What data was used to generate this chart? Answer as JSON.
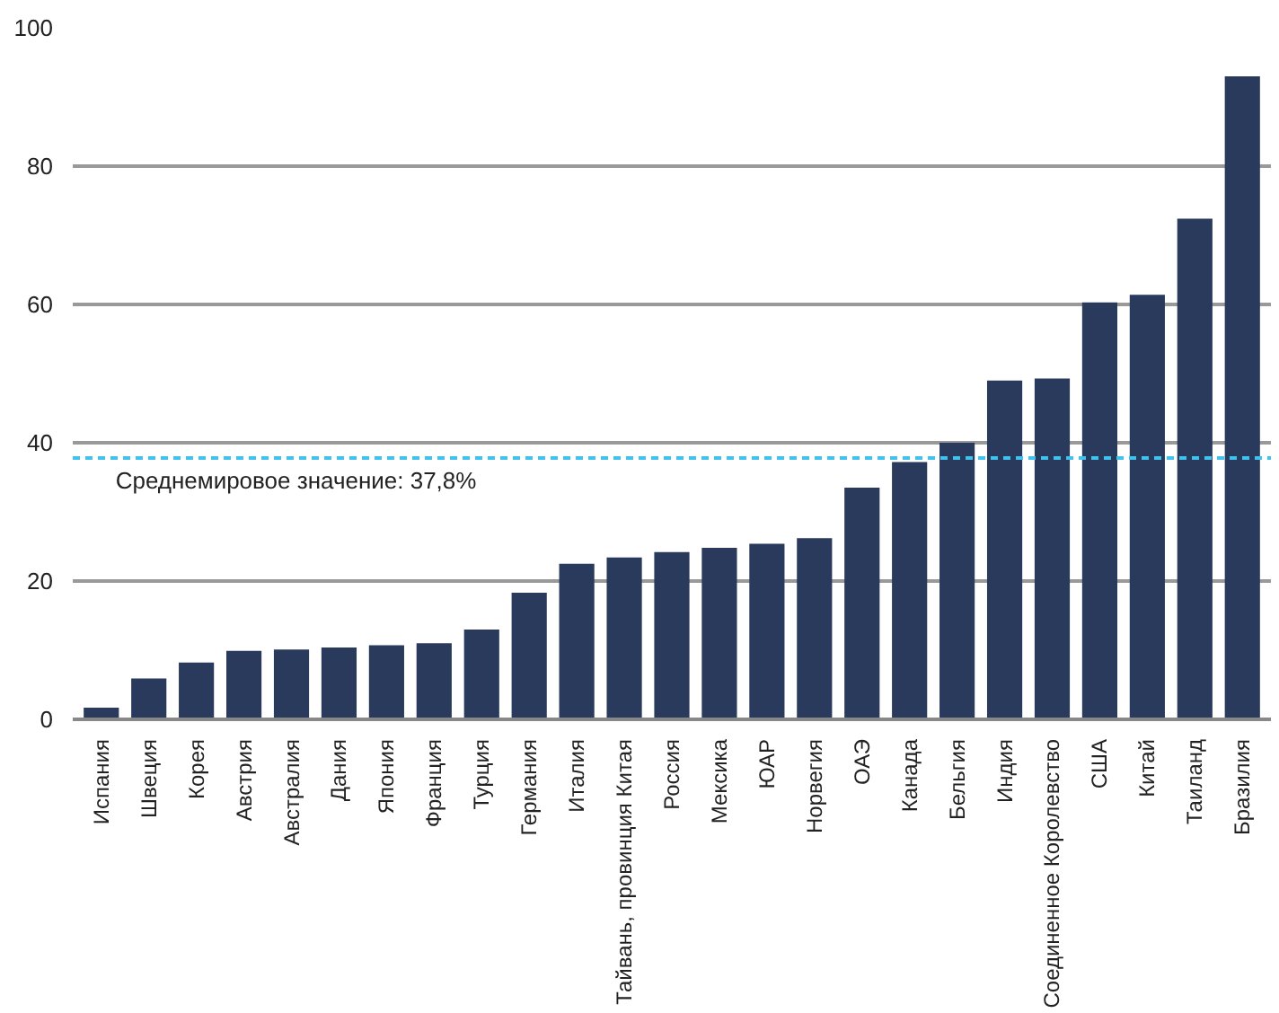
{
  "chart_data": {
    "type": "bar",
    "categories": [
      "Испания",
      "Швеция",
      "Корея",
      "Австрия",
      "Австралия",
      "Дания",
      "Япония",
      "Франция",
      "Турция",
      "Германия",
      "Италия",
      "Тайвань, провинция Китая",
      "Россия",
      "Мексика",
      "ЮАР",
      "Норвегия",
      "ОАЭ",
      "Канада",
      "Бельгия",
      "Индия",
      "Соединенное Королевство",
      "США",
      "Китай",
      "Таиланд",
      "Бразилия"
    ],
    "values": [
      1.7,
      5.9,
      8.2,
      9.9,
      10.1,
      10.4,
      10.7,
      11.0,
      13.0,
      18.3,
      22.5,
      23.4,
      24.2,
      24.8,
      25.4,
      26.2,
      33.5,
      37.2,
      40.0,
      49.0,
      49.3,
      60.3,
      61.4,
      72.4,
      93.0
    ],
    "color": "#293a5c",
    "ylim": [
      0,
      100
    ],
    "yticks": [
      0,
      20,
      40,
      60,
      80,
      100
    ],
    "grid": "y",
    "ref_lines": [
      {
        "axis": "y",
        "value": 37.8,
        "label": "Среднемировое значение: 37,8%",
        "color": "#3fc3ee",
        "line_style": "dashed"
      }
    ]
  }
}
